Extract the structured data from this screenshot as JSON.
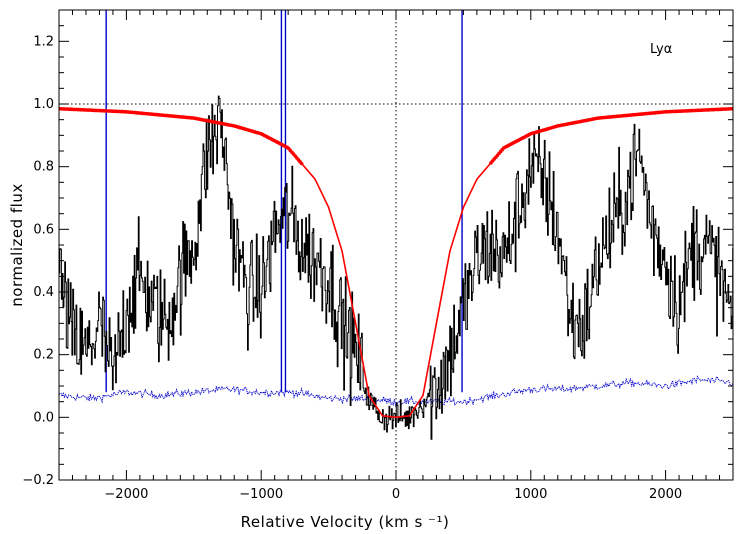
{
  "chart_data": {
    "type": "line",
    "title": "",
    "xlabel": "Relative Velocity (km s ⁻¹)",
    "ylabel": "normalized flux",
    "annotation": "Lyα",
    "xlim": [
      -2500,
      2500
    ],
    "ylim": [
      -0.2,
      1.3
    ],
    "xticks": [
      -2000,
      -1000,
      0,
      1000,
      2000
    ],
    "yticks": [
      -0.2,
      0.0,
      0.2,
      0.4,
      0.6,
      0.8,
      1.0,
      1.2
    ],
    "continuum_level": 1.0,
    "zero_velocity": 0,
    "grid": false,
    "series": [
      {
        "color": "#000000",
        "style": "histogram-noisy",
        "x": [
          -2500,
          -2400,
          -2300,
          -2200,
          -2100,
          -2000,
          -1900,
          -1800,
          -1700,
          -1600,
          -1500,
          -1400,
          -1300,
          -1200,
          -1100,
          -1000,
          -900,
          -800,
          -700,
          -600,
          -500,
          -400,
          -300,
          -200,
          -100,
          0,
          100,
          200,
          300,
          400,
          500,
          600,
          700,
          800,
          900,
          1000,
          1100,
          1200,
          1300,
          1400,
          1500,
          1600,
          1700,
          1800,
          1900,
          2000,
          2100,
          2200,
          2300,
          2400,
          2500
        ],
        "y": [
          0.45,
          0.25,
          0.2,
          0.3,
          0.12,
          0.35,
          0.45,
          0.35,
          0.3,
          0.45,
          0.55,
          0.85,
          0.95,
          0.55,
          0.4,
          0.4,
          0.6,
          0.65,
          0.55,
          0.5,
          0.45,
          0.3,
          0.2,
          0.05,
          0.0,
          0.0,
          0.0,
          0.05,
          0.1,
          0.2,
          0.35,
          0.5,
          0.55,
          0.5,
          0.65,
          0.8,
          0.75,
          0.6,
          0.3,
          0.3,
          0.5,
          0.6,
          0.7,
          0.85,
          0.6,
          0.5,
          0.35,
          0.55,
          0.55,
          0.45,
          0.3
        ]
      },
      {
        "color": "#0000cc",
        "style": "dotted",
        "x": [
          -2500,
          -2250,
          -2000,
          -1750,
          -1500,
          -1250,
          -1000,
          -750,
          -500,
          -250,
          0,
          250,
          500,
          750,
          1000,
          1250,
          1500,
          1750,
          2000,
          2250,
          2500
        ],
        "y": [
          0.07,
          0.06,
          0.08,
          0.07,
          0.08,
          0.09,
          0.08,
          0.08,
          0.06,
          0.06,
          0.05,
          0.05,
          0.05,
          0.07,
          0.09,
          0.09,
          0.1,
          0.11,
          0.1,
          0.12,
          0.11
        ]
      },
      {
        "color": "#ff0000",
        "style": "solid",
        "x": [
          -2500,
          -2000,
          -1500,
          -1200,
          -1000,
          -800,
          -600,
          -500,
          -400,
          -300,
          -200,
          -100,
          0,
          100,
          200,
          300,
          400,
          500,
          600,
          800,
          1000,
          1200,
          1500,
          2000,
          2500
        ],
        "y": [
          0.985,
          0.975,
          0.955,
          0.93,
          0.905,
          0.86,
          0.76,
          0.67,
          0.53,
          0.3,
          0.07,
          0.005,
          0.0,
          0.005,
          0.07,
          0.3,
          0.53,
          0.67,
          0.76,
          0.86,
          0.905,
          0.93,
          0.955,
          0.975,
          0.985
        ]
      }
    ],
    "vertical_lines": [
      -2150,
      -850,
      -820,
      490
    ]
  }
}
